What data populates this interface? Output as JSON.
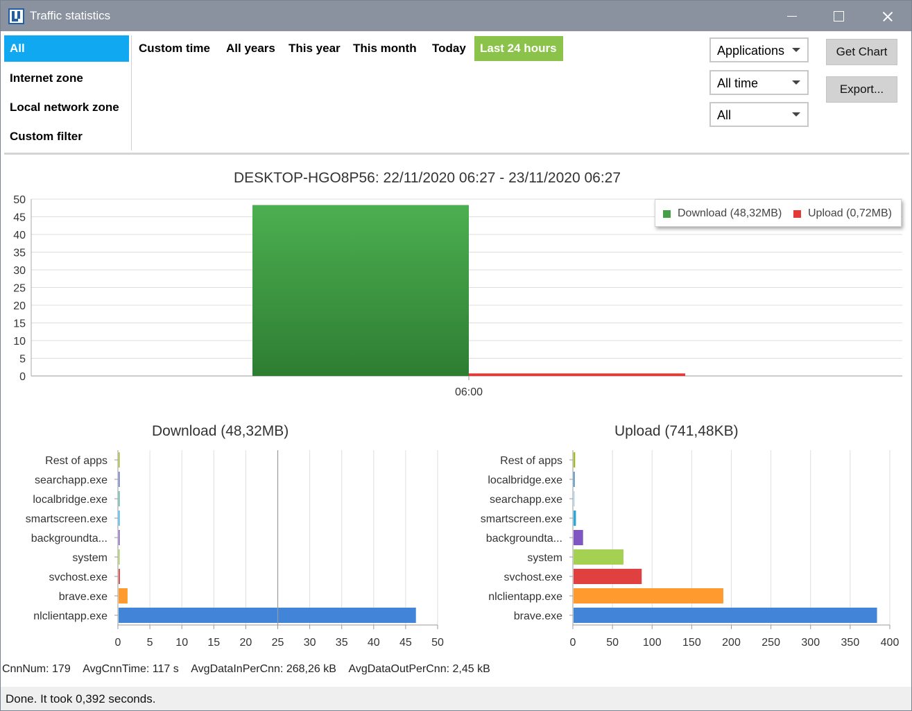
{
  "window": {
    "title": "Traffic statistics"
  },
  "filters": [
    {
      "label": "All",
      "active": true
    },
    {
      "label": "Internet zone",
      "active": false
    },
    {
      "label": "Local network zone",
      "active": false
    },
    {
      "label": "Custom filter",
      "active": false
    }
  ],
  "time_tabs": [
    {
      "label": "Custom time",
      "active": false
    },
    {
      "label": "All years",
      "active": false
    },
    {
      "label": "This year",
      "active": false
    },
    {
      "label": "This month",
      "active": false
    },
    {
      "label": "Today",
      "active": false
    },
    {
      "label": "Last 24 hours",
      "active": true
    }
  ],
  "dropdowns": {
    "group_by": "Applications",
    "period": "All time",
    "scope": "All"
  },
  "buttons": {
    "get_chart": "Get Chart",
    "export": "Export..."
  },
  "colors": {
    "active_filter": "#10a8f0",
    "active_tab": "#8bc34a",
    "download": "#43a047",
    "upload": "#e53935"
  },
  "chart_data": [
    {
      "type": "bar",
      "title": "DESKTOP-HGO8P56: 22/11/2020 06:27 - 23/11/2020 06:27",
      "categories": [
        "06:00"
      ],
      "series": [
        {
          "name": "Download (48,32MB)",
          "values": [
            48.32
          ],
          "color": "#43a047"
        },
        {
          "name": "Upload (0,72MB)",
          "values": [
            0.72
          ],
          "color": "#e53935"
        }
      ],
      "ylim": [
        0,
        50
      ],
      "yticks": [
        0,
        5,
        10,
        15,
        20,
        25,
        30,
        35,
        40,
        45,
        50
      ],
      "legend": "top-right",
      "grid": true
    },
    {
      "type": "bar",
      "orientation": "horizontal",
      "title": "Download (48,32MB)",
      "categories": [
        "Rest of apps",
        "searchapp.exe",
        "localbridge.exe",
        "smartscreen.exe",
        "backgroundta...",
        "system",
        "svchost.exe",
        "brave.exe",
        "nlclientapp.exe"
      ],
      "values": [
        0.02,
        0.01,
        0.01,
        0.01,
        0.08,
        0.05,
        0.2,
        1.4,
        46.5
      ],
      "colors": [
        "#9ebb1a",
        "#5c6bc0",
        "#4db6ac",
        "#29b6f6",
        "#7e57c2",
        "#a5d152",
        "#e04040",
        "#ff9a2e",
        "#4285d8"
      ],
      "xlim": [
        0,
        50
      ],
      "xticks": [
        0,
        5,
        10,
        15,
        20,
        25,
        30,
        35,
        40,
        45,
        50
      ],
      "grid": true
    },
    {
      "type": "bar",
      "orientation": "horizontal",
      "title": "Upload (741,48KB)",
      "categories": [
        "Rest of apps",
        "localbridge.exe",
        "searchapp.exe",
        "smartscreen.exe",
        "backgroundta...",
        "system",
        "svchost.exe",
        "nlclientapp.exe",
        "brave.exe"
      ],
      "values": [
        2,
        1,
        1,
        3,
        12,
        63,
        86,
        189,
        383
      ],
      "colors": [
        "#9ebb1a",
        "#2c7fb8",
        "#b3d9ee",
        "#26a9d6",
        "#7e57c2",
        "#a5d152",
        "#e04040",
        "#ff9a2e",
        "#4285d8"
      ],
      "xlim": [
        0,
        400
      ],
      "xticks": [
        0,
        50,
        100,
        150,
        200,
        250,
        300,
        350,
        400
      ],
      "grid": true
    }
  ],
  "stats": {
    "cnn_num": "CnnNum: 179",
    "avg_cnn_time": "AvgCnnTime: 117 s",
    "avg_in": "AvgDataInPerCnn: 268,26 kB",
    "avg_out": "AvgDataOutPerCnn: 2,45 kB"
  },
  "status": "Done. It took 0,392 seconds."
}
